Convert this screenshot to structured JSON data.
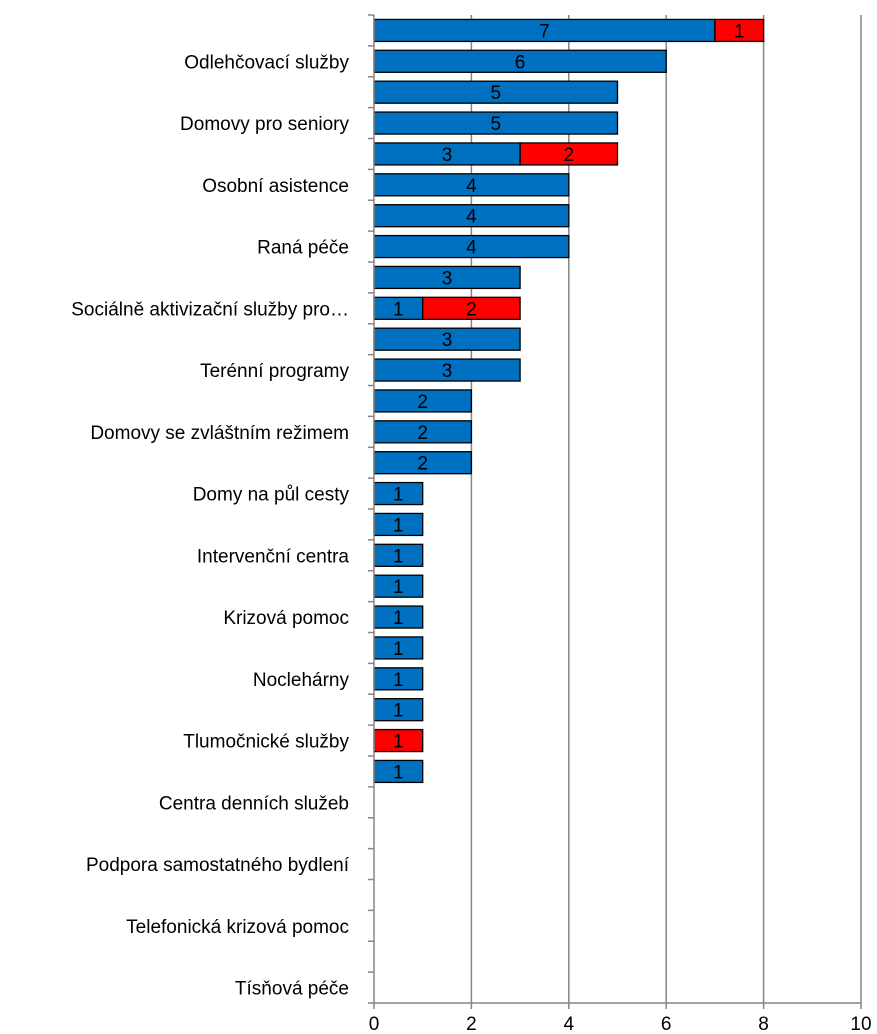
{
  "chart_data": {
    "type": "bar",
    "orientation": "horizontal",
    "stacked": true,
    "categories": [
      "",
      "Odlehčovací služby",
      "",
      "Domovy pro seniory",
      "",
      "Osobní asistence",
      "",
      "Raná péče",
      "",
      "Sociálně aktivizační služby pro…",
      "",
      "Terénní programy",
      "",
      "Domovy se zvláštním režimem",
      "",
      "Domy na půl cesty",
      "",
      "Intervenční centra",
      "",
      "Krizová pomoc",
      "",
      "Noclehárny",
      "",
      "Tlumočnické služby",
      "",
      "Centra denních služeb",
      "",
      "Podpora samostatného bydlení",
      "",
      "Telefonická krizová pomoc",
      "",
      "Tísňová péče"
    ],
    "series": [
      {
        "color": "#0070c0",
        "values": [
          7,
          6,
          5,
          5,
          3,
          4,
          4,
          4,
          3,
          1,
          3,
          3,
          2,
          2,
          2,
          1,
          1,
          1,
          1,
          1,
          1,
          1,
          1,
          0,
          1,
          0,
          0,
          0,
          0,
          0,
          0,
          0
        ]
      },
      {
        "color": "#ff0000",
        "values": [
          1,
          0,
          0,
          0,
          2,
          0,
          0,
          0,
          0,
          2,
          0,
          0,
          0,
          0,
          0,
          0,
          0,
          0,
          0,
          0,
          0,
          0,
          0,
          1,
          0,
          0,
          0,
          0,
          0,
          0,
          0,
          0
        ]
      }
    ],
    "xlim": [
      0,
      10
    ],
    "xticks": [
      0,
      2,
      4,
      6,
      8,
      10
    ],
    "grid": "vertical",
    "legend": "none",
    "title": "",
    "xlabel": "",
    "ylabel": ""
  }
}
